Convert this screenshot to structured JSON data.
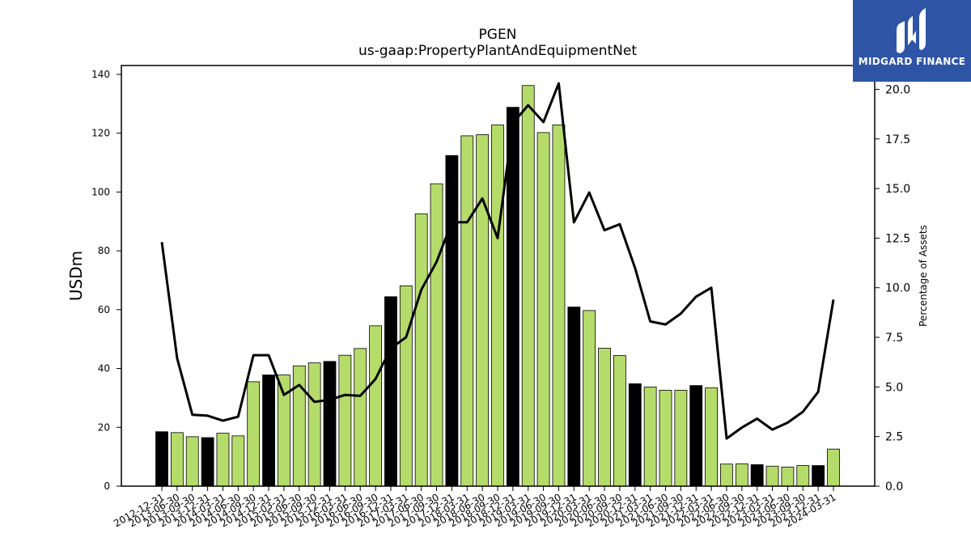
{
  "logo": {
    "text": "MIDGARD FINANCE",
    "icon": "midgard-logo-icon",
    "background": "#2e55a5"
  },
  "chart_data": {
    "type": "bar",
    "title": "PGEN",
    "subtitle": "us-gaap:PropertyPlantAndEquipmentNet",
    "ylabel": "USDm",
    "y2label": "Percentage of Assets",
    "ylim": [
      0,
      143
    ],
    "y2lim": [
      0,
      21.2
    ],
    "yticks": [
      0,
      20,
      40,
      60,
      80,
      100,
      120,
      140
    ],
    "y2ticks": [
      "0.0",
      "2.5",
      "5.0",
      "7.5",
      "10.0",
      "12.5",
      "15.0",
      "17.5",
      "20.0"
    ],
    "colors": {
      "annual_bar": "#000000",
      "quarter_bar": "#b5dc6a",
      "line": "#000000"
    },
    "categories": [
      "2012-12-31",
      "2013-06-30",
      "2013-09-30",
      "2013-12-31",
      "2014-03-31",
      "2014-06-30",
      "2014-09-30",
      "2014-12-31",
      "2015-03-31",
      "2015-06-30",
      "2015-09-30",
      "2015-12-31",
      "2016-03-31",
      "2016-06-30",
      "2016-09-30",
      "2016-12-31",
      "2017-03-31",
      "2017-06-30",
      "2017-09-30",
      "2017-12-31",
      "2018-03-31",
      "2018-06-30",
      "2018-09-30",
      "2018-12-31",
      "2019-03-31",
      "2019-06-30",
      "2019-09-30",
      "2019-12-31",
      "2020-03-31",
      "2020-06-30",
      "2020-09-30",
      "2020-12-31",
      "2021-03-31",
      "2021-06-30",
      "2021-09-30",
      "2021-12-31",
      "2022-03-31",
      "2022-06-30",
      "2022-09-30",
      "2022-12-31",
      "2023-03-31",
      "2023-06-30",
      "2023-09-30",
      "2023-12-31",
      "2024-03-31"
    ],
    "series": [
      {
        "kind": "bar",
        "values": [
          18.5,
          18.2,
          16.8,
          16.5,
          18.0,
          17.1,
          35.5,
          37.8,
          37.8,
          40.9,
          41.9,
          42.4,
          44.5,
          46.8,
          54.5,
          64.4,
          68.1,
          92.6,
          102.8,
          112.4,
          119.1,
          119.5,
          122.8,
          128.8,
          136.2,
          120.2,
          122.8,
          60.9,
          59.7,
          46.9,
          44.4,
          34.8,
          33.7,
          32.6,
          32.6,
          34.2,
          33.4,
          7.5,
          7.6,
          7.3,
          6.8,
          6.5,
          7.0,
          7.0,
          12.6
        ],
        "annual": [
          true,
          false,
          false,
          true,
          false,
          false,
          false,
          true,
          false,
          false,
          false,
          true,
          false,
          false,
          false,
          true,
          false,
          false,
          false,
          true,
          false,
          false,
          false,
          true,
          false,
          false,
          false,
          true,
          false,
          false,
          false,
          true,
          false,
          false,
          false,
          true,
          false,
          false,
          false,
          true,
          false,
          false,
          false,
          true,
          false
        ]
      },
      {
        "kind": "line",
        "axis": "right",
        "values": [
          12.3,
          6.45,
          3.6,
          3.55,
          3.3,
          3.5,
          6.6,
          6.6,
          4.6,
          5.1,
          4.25,
          4.35,
          4.6,
          4.55,
          5.4,
          6.95,
          7.5,
          9.9,
          11.3,
          13.3,
          13.3,
          14.5,
          12.5,
          18.3,
          19.2,
          18.35,
          20.3,
          13.3,
          14.8,
          12.9,
          13.2,
          11.0,
          8.3,
          8.15,
          8.7,
          9.55,
          10.0,
          2.4,
          2.95,
          3.4,
          2.85,
          3.2,
          3.75,
          4.75,
          9.4
        ]
      }
    ]
  }
}
